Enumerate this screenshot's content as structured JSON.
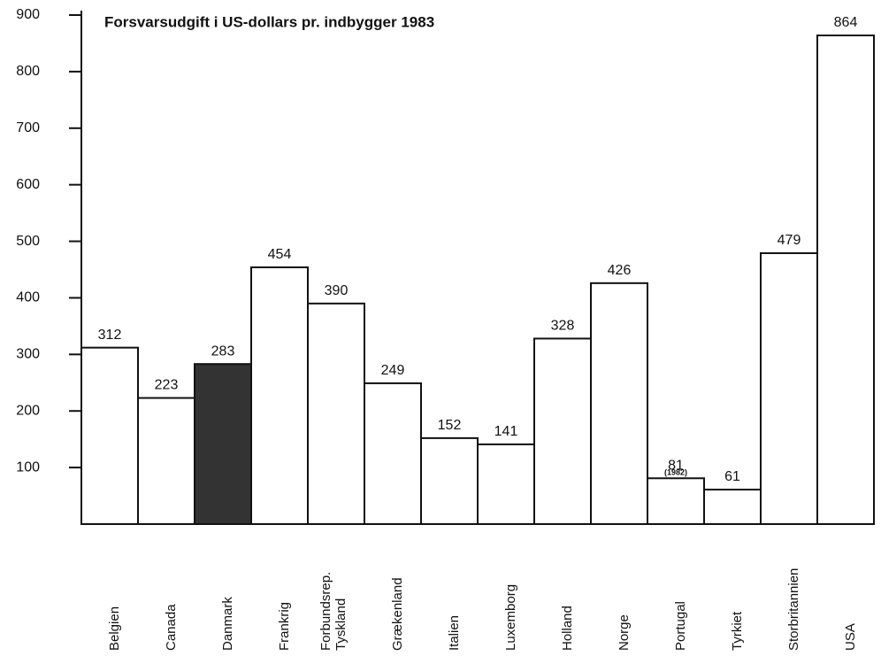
{
  "chart_data": {
    "type": "bar",
    "title": "Forsvarsudgift i US-dollars pr. indbygger 1983",
    "categories": [
      "Belgien",
      "Canada",
      "Danmark",
      "Frankrig",
      "Forbundsrep.\nTyskland",
      "Grækenland",
      "Italien",
      "Luxemborg",
      "Holland",
      "Norge",
      "Portugal",
      "Tyrkiet",
      "Storbritannien",
      "USA"
    ],
    "values": [
      312,
      223,
      283,
      454,
      390,
      249,
      152,
      141,
      328,
      426,
      81,
      61,
      479,
      864
    ],
    "colors": [
      "#ffffff",
      "#ffffff",
      "#333333",
      "#ffffff",
      "#ffffff",
      "#ffffff",
      "#ffffff",
      "#ffffff",
      "#ffffff",
      "#ffffff",
      "#ffffff",
      "#ffffff",
      "#ffffff",
      "#ffffff"
    ],
    "annotations": [
      {
        "text": "(1982)",
        "category": "Portugal"
      }
    ],
    "ylim": [
      0,
      900
    ],
    "yticks": [
      100,
      200,
      300,
      400,
      500,
      600,
      700,
      800,
      900
    ]
  }
}
